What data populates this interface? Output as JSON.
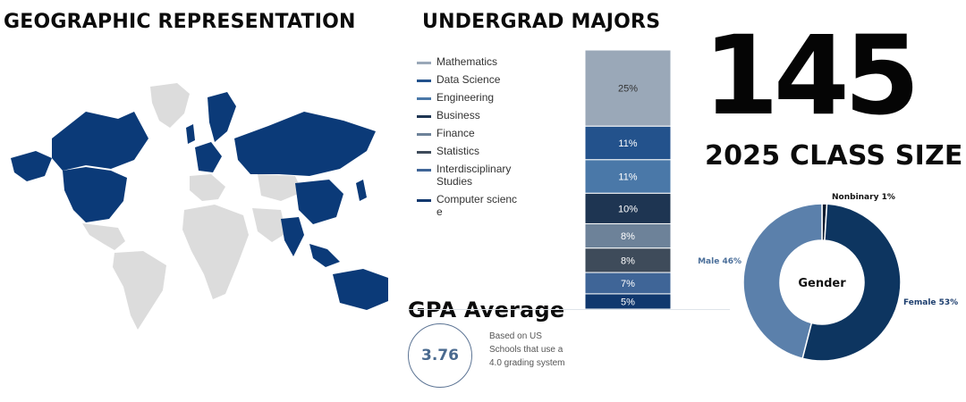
{
  "geography": {
    "title": "GEOGRAPHIC REPRESENTATION",
    "colors": {
      "highlighted": "#0b3a78",
      "other": "#dcdcdc"
    }
  },
  "class_size": {
    "value": "145",
    "label": "2025 CLASS SIZE"
  },
  "gpa": {
    "title": "GPA Average",
    "value": "3.76",
    "note": "Based on US Schools that use a 4.0 grading system"
  },
  "chart_data": [
    {
      "type": "bar",
      "title": "UNDERGRAD MAJORS",
      "stacked": true,
      "series": [
        {
          "name": "Mathematics",
          "value": 25,
          "label": "25%",
          "color": "#9aa8b8"
        },
        {
          "name": "Data Science",
          "value": 11,
          "label": "11%",
          "color": "#23528c"
        },
        {
          "name": "Engineering",
          "value": 11,
          "label": "11%",
          "color": "#4a78a8"
        },
        {
          "name": "Business",
          "value": 10,
          "label": "10%",
          "color": "#1e3552"
        },
        {
          "name": "Finance",
          "value": 8,
          "label": "8%",
          "color": "#6d8299"
        },
        {
          "name": "Statistics",
          "value": 8,
          "label": "8%",
          "color": "#3e4b5a"
        },
        {
          "name": "Interdisciplinary Studies",
          "value": 7,
          "label": "7%",
          "color": "#3f6597"
        },
        {
          "name": "Computer science",
          "value": 5,
          "label": "5%",
          "color": "#10386e"
        }
      ]
    },
    {
      "type": "pie",
      "title": "Gender",
      "donut": true,
      "series": [
        {
          "name": "Nonbinary",
          "value": 1,
          "label": "Nonbinary 1%",
          "color": "#0d1c30"
        },
        {
          "name": "Female",
          "value": 53,
          "label": "Female 53%",
          "color": "#0d3560"
        },
        {
          "name": "Male",
          "value": 46,
          "label": "Male 46%",
          "color": "#5b80ab"
        }
      ]
    }
  ]
}
